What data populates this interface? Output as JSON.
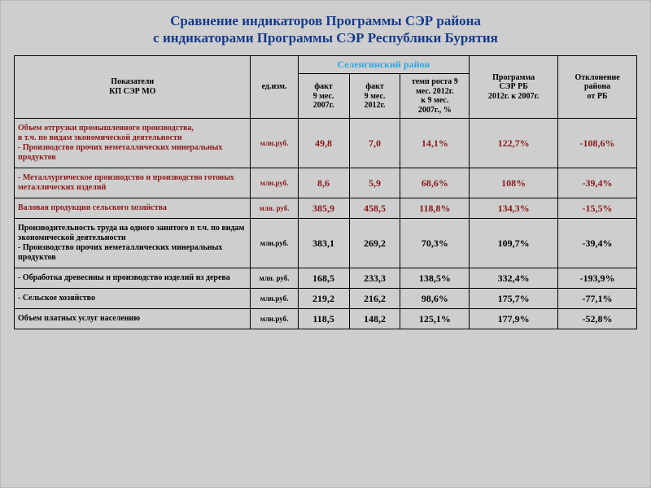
{
  "title_line1": "Сравнение индикаторов Программы СЭР района",
  "title_line2": "с индикаторами Программы СЭР Республики Бурятия",
  "headers": {
    "indicator": "Показатели\nКП СЭР МО",
    "unit": "ед.изм.",
    "group": "Селенгинский район",
    "fact1": "факт\n9 мес.\n2007г.",
    "fact2": "факт\n9 мес.\n2012г.",
    "growth": "темп роста 9\nмес. 2012г.\nк 9 мес.\n2007г., %",
    "program": "Программа\nСЭР РБ\n2012г. к 2007г.",
    "deviation": "Отклонение\nрайона\nот РБ"
  },
  "rows": [
    {
      "cls": "r-red",
      "indicator": "Объем отгрузки промышленного производства,\n  в т.ч. по видам экономической деятельности\n- Производство прочих неметаллических минеральных продуктов",
      "unit": "млн.руб.",
      "fact1": "49,8",
      "fact2": "7,0",
      "growth": "14,1%",
      "program": "122,7%",
      "deviation": "-108,6%"
    },
    {
      "cls": "r-red",
      "indicator": "- Металлургическое производство и производство готовых металлических изделий",
      "unit": "млн.руб.",
      "fact1": "8,6",
      "fact2": "5,9",
      "growth": "68,6%",
      "program": "108%",
      "deviation": "-39,4%"
    },
    {
      "cls": "r-red",
      "indicator": "Валовая продукция сельского хозяйства",
      "unit": "млн. руб.",
      "fact1": "385,9",
      "fact2": "458,5",
      "growth": "118,8%",
      "program": "134,3%",
      "deviation": "-15,5%"
    },
    {
      "cls": "r-blk",
      "indicator": "Производительность труда на одного занятого в т.ч. по видам экономической деятельности\n- Производство прочих неметаллических минеральных продуктов",
      "unit": "млн.руб.",
      "fact1": "383,1",
      "fact2": "269,2",
      "growth": "70,3%",
      "program": "109,7%",
      "deviation": "-39,4%"
    },
    {
      "cls": "r-blk",
      "indicator": "- Обработка древесины и производство изделий из дерева",
      "unit": "млн. руб.",
      "fact1": "168,5",
      "fact2": "233,3",
      "growth": "138,5%",
      "program": "332,4%",
      "deviation": "-193,9%"
    },
    {
      "cls": "r-blk",
      "indicator": "- Сельское хозяйство",
      "unit": "млн.руб.",
      "fact1": "219,2",
      "fact2": "216,2",
      "growth": "98,6%",
      "program": "175,7%",
      "deviation": "-77,1%"
    },
    {
      "cls": "r-blk",
      "indicator": "Объем платных услуг населению",
      "unit": "млн.руб.",
      "fact1": "118,5",
      "fact2": "148,2",
      "growth": "125,1%",
      "program": "177,9%",
      "deviation": "-52,8%"
    }
  ]
}
